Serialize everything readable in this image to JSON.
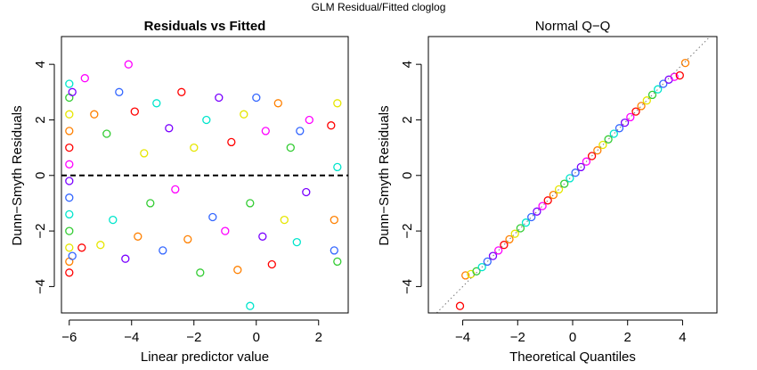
{
  "figure": {
    "title": "GLM Residual/Fitted cloglog"
  },
  "chart_data": [
    {
      "type": "scatter",
      "title": "Residuals vs Fitted",
      "title_bold": true,
      "xlabel": "Linear predictor value",
      "ylabel": "Dunn−Smyth Residuals",
      "xlim": [
        -6.25,
        2.95
      ],
      "ylim": [
        -4.95,
        5.0
      ],
      "xticks": [
        -6,
        -4,
        -2,
        0,
        2
      ],
      "xtick_labels": [
        "−6",
        "−4",
        "−2",
        "0",
        "2"
      ],
      "yticks": [
        -4,
        -2,
        0,
        2,
        4
      ],
      "ytick_labels": [
        "−4",
        "−2",
        "0",
        "2",
        "4"
      ],
      "reference_line": {
        "y": 0,
        "style": "dashed",
        "color": "#000000"
      },
      "marker": "open-circle",
      "color_scheme": "rainbow by site (red, orange, yellow, green, cyan, blue, violet, magenta)",
      "grid": false,
      "points": [
        [
          -6.0,
          -3.5
        ],
        [
          -6.0,
          -3.1
        ],
        [
          -6.0,
          -2.6
        ],
        [
          -6.0,
          -2.0
        ],
        [
          -6.0,
          -1.4
        ],
        [
          -6.0,
          -0.8
        ],
        [
          -6.0,
          -0.2
        ],
        [
          -6.0,
          0.4
        ],
        [
          -6.0,
          1.0
        ],
        [
          -6.0,
          1.6
        ],
        [
          -6.0,
          2.2
        ],
        [
          -6.0,
          2.8
        ],
        [
          -6.0,
          3.3
        ],
        [
          -5.9,
          -2.9
        ],
        [
          -5.9,
          3.0
        ],
        [
          -5.5,
          3.5
        ],
        [
          -5.6,
          -2.6
        ],
        [
          -5.2,
          2.2
        ],
        [
          -5.0,
          -2.5
        ],
        [
          -4.8,
          1.5
        ],
        [
          -4.6,
          -1.6
        ],
        [
          -4.4,
          3.0
        ],
        [
          -4.2,
          -3.0
        ],
        [
          -4.1,
          4.0
        ],
        [
          -3.9,
          2.3
        ],
        [
          -3.8,
          -2.2
        ],
        [
          -3.6,
          0.8
        ],
        [
          -3.4,
          -1.0
        ],
        [
          -3.2,
          2.6
        ],
        [
          -3.0,
          -2.7
        ],
        [
          -2.8,
          1.7
        ],
        [
          -2.6,
          -0.5
        ],
        [
          -2.4,
          3.0
        ],
        [
          -2.2,
          -2.3
        ],
        [
          -2.0,
          1.0
        ],
        [
          -1.8,
          -3.5
        ],
        [
          -1.6,
          2.0
        ],
        [
          -1.4,
          -1.5
        ],
        [
          -1.2,
          2.8
        ],
        [
          -1.0,
          -2.0
        ],
        [
          -0.8,
          1.2
        ],
        [
          -0.6,
          -3.4
        ],
        [
          -0.4,
          2.2
        ],
        [
          -0.2,
          -1.0
        ],
        [
          -0.2,
          -4.7
        ],
        [
          0.0,
          2.8
        ],
        [
          0.2,
          -2.2
        ],
        [
          0.3,
          1.6
        ],
        [
          0.5,
          -3.2
        ],
        [
          0.7,
          2.6
        ],
        [
          0.9,
          -1.6
        ],
        [
          1.1,
          1.0
        ],
        [
          1.3,
          -2.4
        ],
        [
          1.4,
          1.6
        ],
        [
          1.6,
          -0.6
        ],
        [
          1.7,
          2.0
        ],
        [
          2.4,
          1.8
        ],
        [
          2.5,
          -1.6
        ],
        [
          2.6,
          2.6
        ],
        [
          2.6,
          -3.1
        ],
        [
          2.6,
          0.3
        ],
        [
          2.5,
          -2.7
        ]
      ]
    },
    {
      "type": "scatter",
      "title": "Normal Q−Q",
      "title_bold": false,
      "xlabel": "Theoretical Quantiles",
      "ylabel": "Dunn−Smyth Residuals",
      "xlim": [
        -5.25,
        5.25
      ],
      "ylim": [
        -4.95,
        5.0
      ],
      "xticks": [
        -4,
        -2,
        0,
        2,
        4
      ],
      "xtick_labels": [
        "−4",
        "−2",
        "0",
        "2",
        "4"
      ],
      "yticks": [
        -4,
        -2,
        0,
        2,
        4
      ],
      "ytick_labels": [
        "−4",
        "−2",
        "0",
        "2",
        "4"
      ],
      "reference_line": {
        "slope": 1,
        "intercept": 0,
        "style": "dotted",
        "color": "#777777"
      },
      "marker": "open-circle",
      "grid": false,
      "points": [
        [
          -4.1,
          -4.7
        ],
        [
          -3.9,
          -3.6
        ],
        [
          -3.7,
          -3.55
        ],
        [
          -3.5,
          -3.45
        ],
        [
          -3.3,
          -3.3
        ],
        [
          -3.1,
          -3.1
        ],
        [
          -2.9,
          -2.9
        ],
        [
          -2.7,
          -2.7
        ],
        [
          -2.5,
          -2.5
        ],
        [
          -2.3,
          -2.3
        ],
        [
          -2.1,
          -2.1
        ],
        [
          -1.9,
          -1.9
        ],
        [
          -1.7,
          -1.7
        ],
        [
          -1.5,
          -1.5
        ],
        [
          -1.3,
          -1.3
        ],
        [
          -1.1,
          -1.1
        ],
        [
          -0.9,
          -0.9
        ],
        [
          -0.7,
          -0.7
        ],
        [
          -0.5,
          -0.5
        ],
        [
          -0.3,
          -0.3
        ],
        [
          -0.1,
          -0.1
        ],
        [
          0.1,
          0.1
        ],
        [
          0.3,
          0.3
        ],
        [
          0.5,
          0.5
        ],
        [
          0.7,
          0.7
        ],
        [
          0.9,
          0.9
        ],
        [
          1.1,
          1.1
        ],
        [
          1.3,
          1.3
        ],
        [
          1.5,
          1.5
        ],
        [
          1.7,
          1.7
        ],
        [
          1.9,
          1.9
        ],
        [
          2.1,
          2.1
        ],
        [
          2.3,
          2.3
        ],
        [
          2.5,
          2.5
        ],
        [
          2.7,
          2.7
        ],
        [
          2.9,
          2.9
        ],
        [
          3.1,
          3.1
        ],
        [
          3.3,
          3.3
        ],
        [
          3.5,
          3.45
        ],
        [
          3.7,
          3.55
        ],
        [
          3.9,
          3.6
        ],
        [
          4.1,
          4.05
        ]
      ]
    }
  ]
}
